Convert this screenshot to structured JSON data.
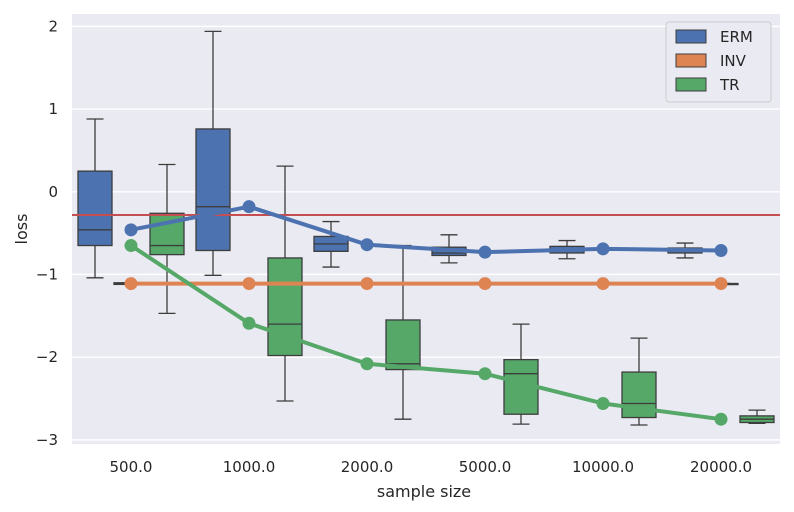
{
  "chart_data": {
    "type": "box",
    "title": "",
    "xlabel": "sample size",
    "ylabel": "loss",
    "ylim": [
      -3.05,
      2.15
    ],
    "yticks": [
      2,
      1,
      0,
      -1,
      -2,
      -3
    ],
    "ytick_labels": [
      "2",
      "1",
      "0",
      "−1",
      "−2",
      "−3"
    ],
    "categories": [
      "500.0",
      "1000.0",
      "2000.0",
      "5000.0",
      "10000.0",
      "20000.0"
    ],
    "reference_line": -0.28,
    "legend": [
      "ERM",
      "INV",
      "TR"
    ],
    "series": [
      {
        "name": "ERM",
        "color": "#4c72b0",
        "boxes": [
          {
            "whislo": -1.04,
            "q1": -0.65,
            "med": -0.46,
            "q3": 0.25,
            "whishi": 0.88
          },
          {
            "whislo": -1.01,
            "q1": -0.71,
            "med": -0.18,
            "q3": 0.76,
            "whishi": 1.94
          },
          {
            "whislo": -0.91,
            "q1": -0.72,
            "med": -0.63,
            "q3": -0.54,
            "whishi": -0.36
          },
          {
            "whislo": -0.86,
            "q1": -0.77,
            "med": -0.74,
            "q3": -0.67,
            "whishi": -0.52
          },
          {
            "whislo": -0.81,
            "q1": -0.74,
            "med": -0.7,
            "q3": -0.66,
            "whishi": -0.59
          },
          {
            "whislo": -0.8,
            "q1": -0.74,
            "med": -0.71,
            "q3": -0.68,
            "whishi": -0.62
          }
        ],
        "mean_line": [
          -0.46,
          -0.18,
          -0.64,
          -0.73,
          -0.69,
          -0.71
        ]
      },
      {
        "name": "INV",
        "color": "#dd8452",
        "boxes": [
          {
            "whislo": -1.12,
            "q1": -1.12,
            "med": -1.11,
            "q3": -1.1,
            "whishi": -1.1
          },
          {
            "whislo": -1.11,
            "q1": -1.11,
            "med": -1.11,
            "q3": -1.11,
            "whishi": -1.11
          },
          {
            "whislo": -1.11,
            "q1": -1.11,
            "med": -1.11,
            "q3": -1.11,
            "whishi": -1.11
          },
          {
            "whislo": -1.11,
            "q1": -1.11,
            "med": -1.11,
            "q3": -1.11,
            "whishi": -1.11
          },
          {
            "whislo": -1.11,
            "q1": -1.11,
            "med": -1.11,
            "q3": -1.11,
            "whishi": -1.11
          },
          {
            "whislo": -1.11,
            "q1": -1.11,
            "med": -1.11,
            "q3": -1.11,
            "whishi": -1.11
          }
        ],
        "mean_line": [
          -1.11,
          -1.11,
          -1.11,
          -1.11,
          -1.11,
          -1.11
        ]
      },
      {
        "name": "TR",
        "color": "#55a868",
        "boxes": [
          {
            "whislo": -1.47,
            "q1": -0.76,
            "med": -0.65,
            "q3": -0.26,
            "whishi": 0.33
          },
          {
            "whislo": -2.53,
            "q1": -1.98,
            "med": -1.6,
            "q3": -0.8,
            "whishi": 0.31
          },
          {
            "whislo": -2.75,
            "q1": -2.15,
            "med": -2.08,
            "q3": -1.55,
            "whishi": -0.65
          },
          {
            "whislo": -2.81,
            "q1": -2.69,
            "med": -2.2,
            "q3": -2.03,
            "whishi": -1.6
          },
          {
            "whislo": -2.82,
            "q1": -2.73,
            "med": -2.56,
            "q3": -2.18,
            "whishi": -1.77
          },
          {
            "whislo": -2.8,
            "q1": -2.79,
            "med": -2.75,
            "q3": -2.71,
            "whishi": -2.64
          }
        ],
        "mean_line": [
          -0.65,
          -1.59,
          -2.08,
          -2.2,
          -2.56,
          -2.75
        ]
      }
    ]
  }
}
